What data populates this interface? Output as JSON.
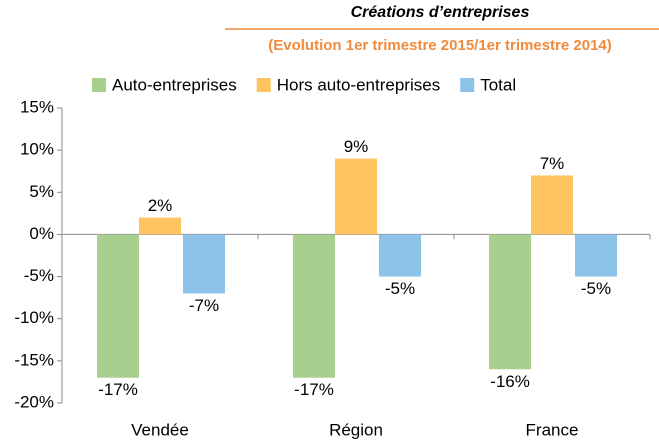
{
  "chart_data": {
    "type": "bar",
    "title": "Créations d’entreprises",
    "subtitle": "(Evolution 1er trimestre 2015/1er trimestre 2014)",
    "categories": [
      "Vendée",
      "Région",
      "France"
    ],
    "series": [
      {
        "name": "Auto-entreprises",
        "color": "#a9cf8e",
        "values": [
          -17,
          -17,
          -16
        ],
        "value_labels": [
          "-17%",
          "-17%",
          "-16%"
        ]
      },
      {
        "name": "Hors auto-entreprises",
        "color": "#fdc45f",
        "values": [
          2,
          9,
          7
        ],
        "value_labels": [
          "2%",
          "9%",
          "7%"
        ]
      },
      {
        "name": "Total",
        "color": "#8ec3e9",
        "values": [
          -7,
          -5,
          -5
        ],
        "value_labels": [
          "-7%",
          "-5%",
          "-5%"
        ]
      }
    ],
    "ylim": [
      -20,
      15
    ],
    "yticks": [
      {
        "value": -20,
        "label": "-20%"
      },
      {
        "value": -15,
        "label": "-15%"
      },
      {
        "value": -10,
        "label": "-10%"
      },
      {
        "value": -5,
        "label": "-5%"
      },
      {
        "value": 0,
        "label": "0%"
      },
      {
        "value": 5,
        "label": "5%"
      },
      {
        "value": 10,
        "label": "10%"
      },
      {
        "value": 15,
        "label": "15%"
      }
    ],
    "legend": "top"
  }
}
